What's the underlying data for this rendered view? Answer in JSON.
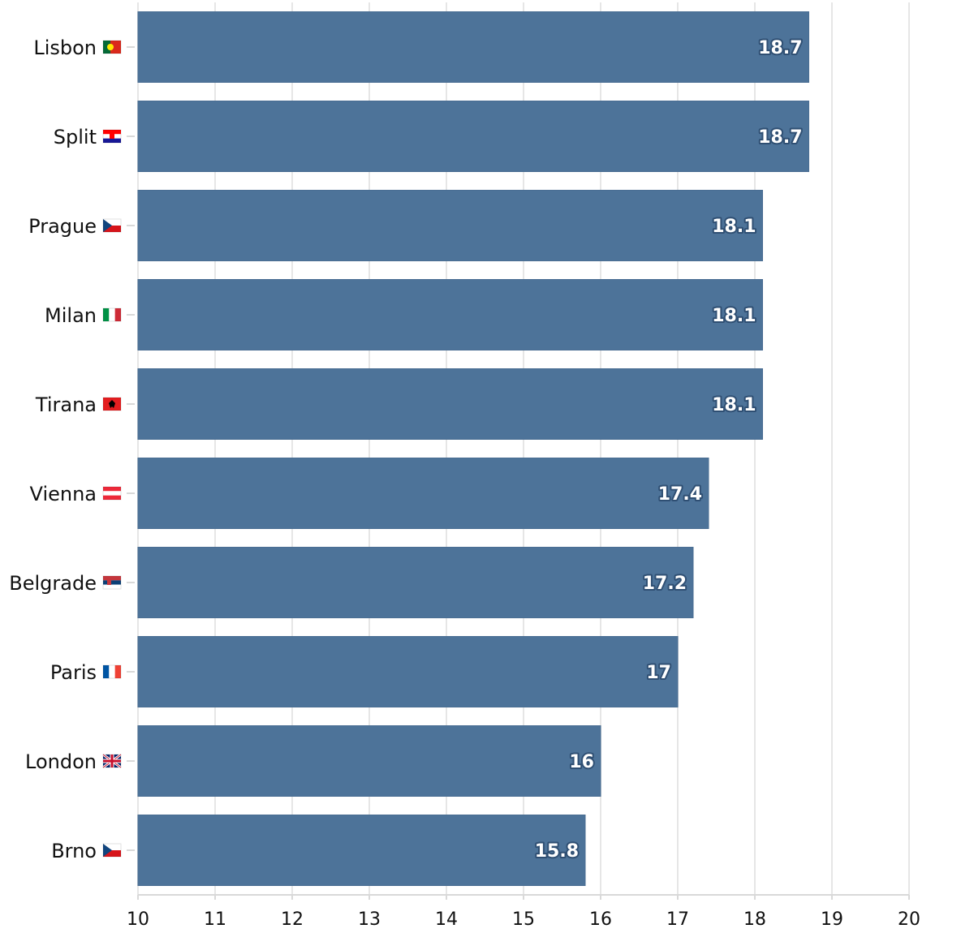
{
  "chart_data": {
    "type": "bar",
    "orientation": "horizontal",
    "categories": [
      "Lisbon",
      "Split",
      "Prague",
      "Milan",
      "Tirana",
      "Vienna",
      "Belgrade",
      "Paris",
      "London",
      "Brno"
    ],
    "flags": [
      "Portugal",
      "Croatia",
      "Czechia",
      "Italy",
      "Albania",
      "Austria",
      "Serbia",
      "France",
      "United Kingdom",
      "Czechia"
    ],
    "values": [
      18.7,
      18.7,
      18.1,
      18.1,
      18.1,
      17.4,
      17.2,
      17,
      16,
      15.8
    ],
    "value_labels": [
      "18.7",
      "18.7",
      "18.1",
      "18.1",
      "18.1",
      "17.4",
      "17.2",
      "17",
      "16",
      "15.8"
    ],
    "xlim": [
      10,
      20
    ],
    "x_ticks": [
      10,
      11,
      12,
      13,
      14,
      15,
      16,
      17,
      18,
      19,
      20
    ],
    "title": "",
    "xlabel": "",
    "ylabel": "",
    "grid": true,
    "legend": "none",
    "colors": {
      "bar": "#4d7399",
      "bar_edge": "#496d92",
      "grid": "#e6e6e6",
      "axis": "#d9d9d9",
      "label_text": "#ffffff",
      "label_outline": "#2f4f73"
    }
  }
}
